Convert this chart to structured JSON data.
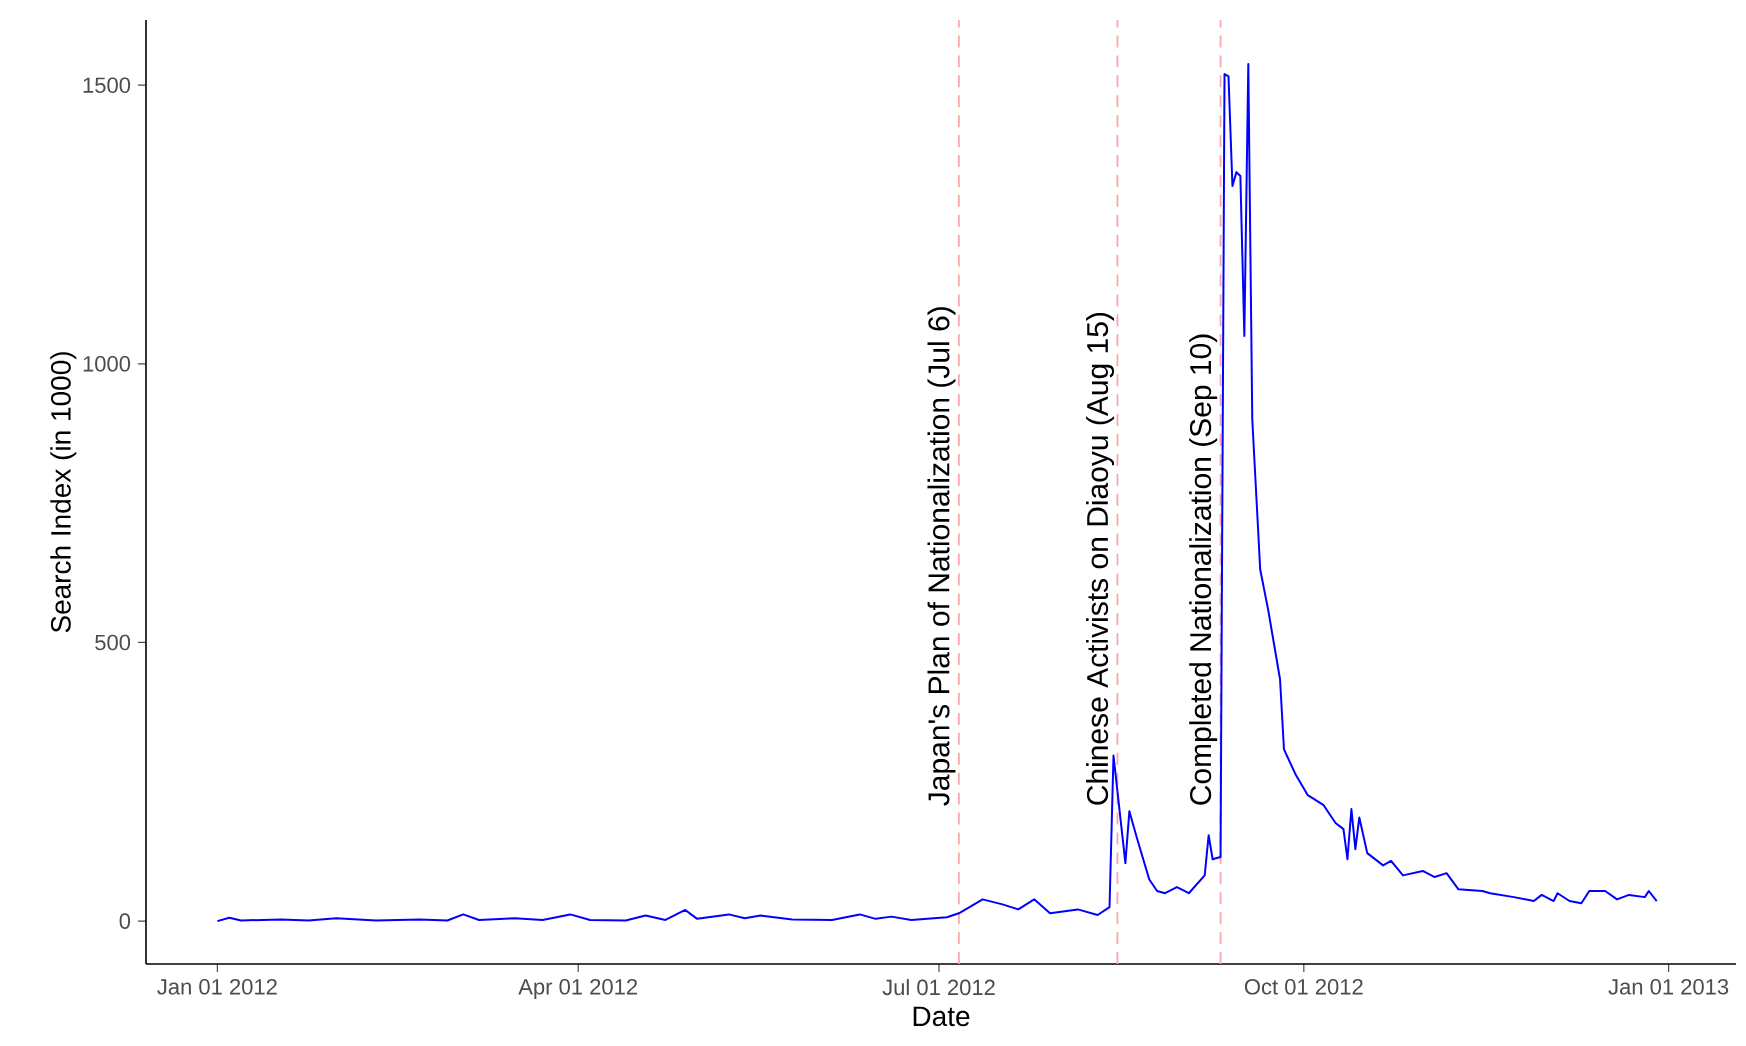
{
  "chart_data": {
    "type": "line",
    "xlabel": "Date",
    "ylabel": "Search Index (in 1000)",
    "x": [
      "2012-01-01",
      "2012-01-04",
      "2012-01-07",
      "2012-01-17",
      "2012-01-24",
      "2012-01-31",
      "2012-02-10",
      "2012-02-21",
      "2012-02-28",
      "2012-03-03",
      "2012-03-07",
      "2012-03-16",
      "2012-03-23",
      "2012-03-30",
      "2012-04-04",
      "2012-04-13",
      "2012-04-18",
      "2012-04-23",
      "2012-04-28",
      "2012-05-01",
      "2012-05-09",
      "2012-05-13",
      "2012-05-17",
      "2012-05-25",
      "2012-06-04",
      "2012-06-11",
      "2012-06-15",
      "2012-06-19",
      "2012-06-24",
      "2012-07-03",
      "2012-07-06",
      "2012-07-12",
      "2012-07-17",
      "2012-07-21",
      "2012-07-25",
      "2012-07-29",
      "2012-08-05",
      "2012-08-10",
      "2012-08-13",
      "2012-08-14",
      "2012-08-17",
      "2012-08-18",
      "2012-08-20",
      "2012-08-23",
      "2012-08-25",
      "2012-08-27",
      "2012-08-30",
      "2012-09-02",
      "2012-09-06",
      "2012-09-07",
      "2012-09-08",
      "2012-09-10",
      "2012-09-11",
      "2012-09-12",
      "2012-09-13",
      "2012-09-14",
      "2012-09-15",
      "2012-09-16",
      "2012-09-17",
      "2012-09-18",
      "2012-09-20",
      "2012-09-22",
      "2012-09-25",
      "2012-09-26",
      "2012-09-29",
      "2012-10-02",
      "2012-10-06",
      "2012-10-09",
      "2012-10-11",
      "2012-10-12",
      "2012-10-13",
      "2012-10-14",
      "2012-10-15",
      "2012-10-17",
      "2012-10-21",
      "2012-10-23",
      "2012-10-26",
      "2012-10-31",
      "2012-11-03",
      "2012-11-06",
      "2012-11-09",
      "2012-11-15",
      "2012-11-17",
      "2012-11-23",
      "2012-11-28",
      "2012-11-30",
      "2012-12-03",
      "2012-12-04",
      "2012-12-07",
      "2012-12-10",
      "2012-12-12",
      "2012-12-16",
      "2012-12-19",
      "2012-12-22",
      "2012-12-26",
      "2012-12-27",
      "2012-12-29"
    ],
    "values": [
      0,
      6,
      1,
      3,
      1,
      5,
      1,
      3,
      1,
      12,
      2,
      5,
      2,
      12,
      2,
      1,
      10,
      2,
      20,
      4,
      12,
      5,
      10,
      3,
      2,
      12,
      4,
      8,
      2,
      7,
      14,
      39,
      30,
      21,
      39,
      14,
      21,
      11,
      25,
      297,
      104,
      197,
      147,
      75,
      54,
      50,
      61,
      50,
      82,
      154,
      111,
      115,
      1520,
      1516,
      1319,
      1344,
      1337,
      1050,
      1538,
      900,
      631,
      559,
      434,
      308,
      262,
      226,
      208,
      176,
      165,
      111,
      201,
      129,
      186,
      122,
      100,
      108,
      82,
      90,
      79,
      86,
      57,
      54,
      50,
      43,
      36,
      47,
      36,
      50,
      36,
      32,
      54,
      54,
      39,
      47,
      43,
      54,
      36
    ],
    "color": "#0000ff",
    "xlim": [
      "2011-12-14",
      "2013-01-18"
    ],
    "ylim": [
      -77,
      1617
    ],
    "xticks": [
      {
        "value": "2012-01-01",
        "label": "Jan 01 2012"
      },
      {
        "value": "2012-04-01",
        "label": "Apr 01 2012"
      },
      {
        "value": "2012-07-01",
        "label": "Jul 01 2012"
      },
      {
        "value": "2012-10-01",
        "label": "Oct 01 2012"
      },
      {
        "value": "2013-01-01",
        "label": "Jan 01 2013"
      }
    ],
    "yticks": [
      0,
      500,
      1000,
      1500
    ],
    "ref_lines": [
      {
        "axis": "x",
        "value": "2012-07-06",
        "label": "Japan's Plan of Nationalization (Jul 6)",
        "color": "#f8a8a8",
        "line_style": "dashed"
      },
      {
        "axis": "x",
        "value": "2012-08-15",
        "label": "Chinese Activists on Diaoyu (Aug 15)",
        "color": "#f8a8a8",
        "line_style": "dashed"
      },
      {
        "axis": "x",
        "value": "2012-09-10",
        "label": "Completed Nationalization (Sep 10)",
        "color": "#f8a8a8",
        "line_style": "dashed"
      }
    ]
  }
}
